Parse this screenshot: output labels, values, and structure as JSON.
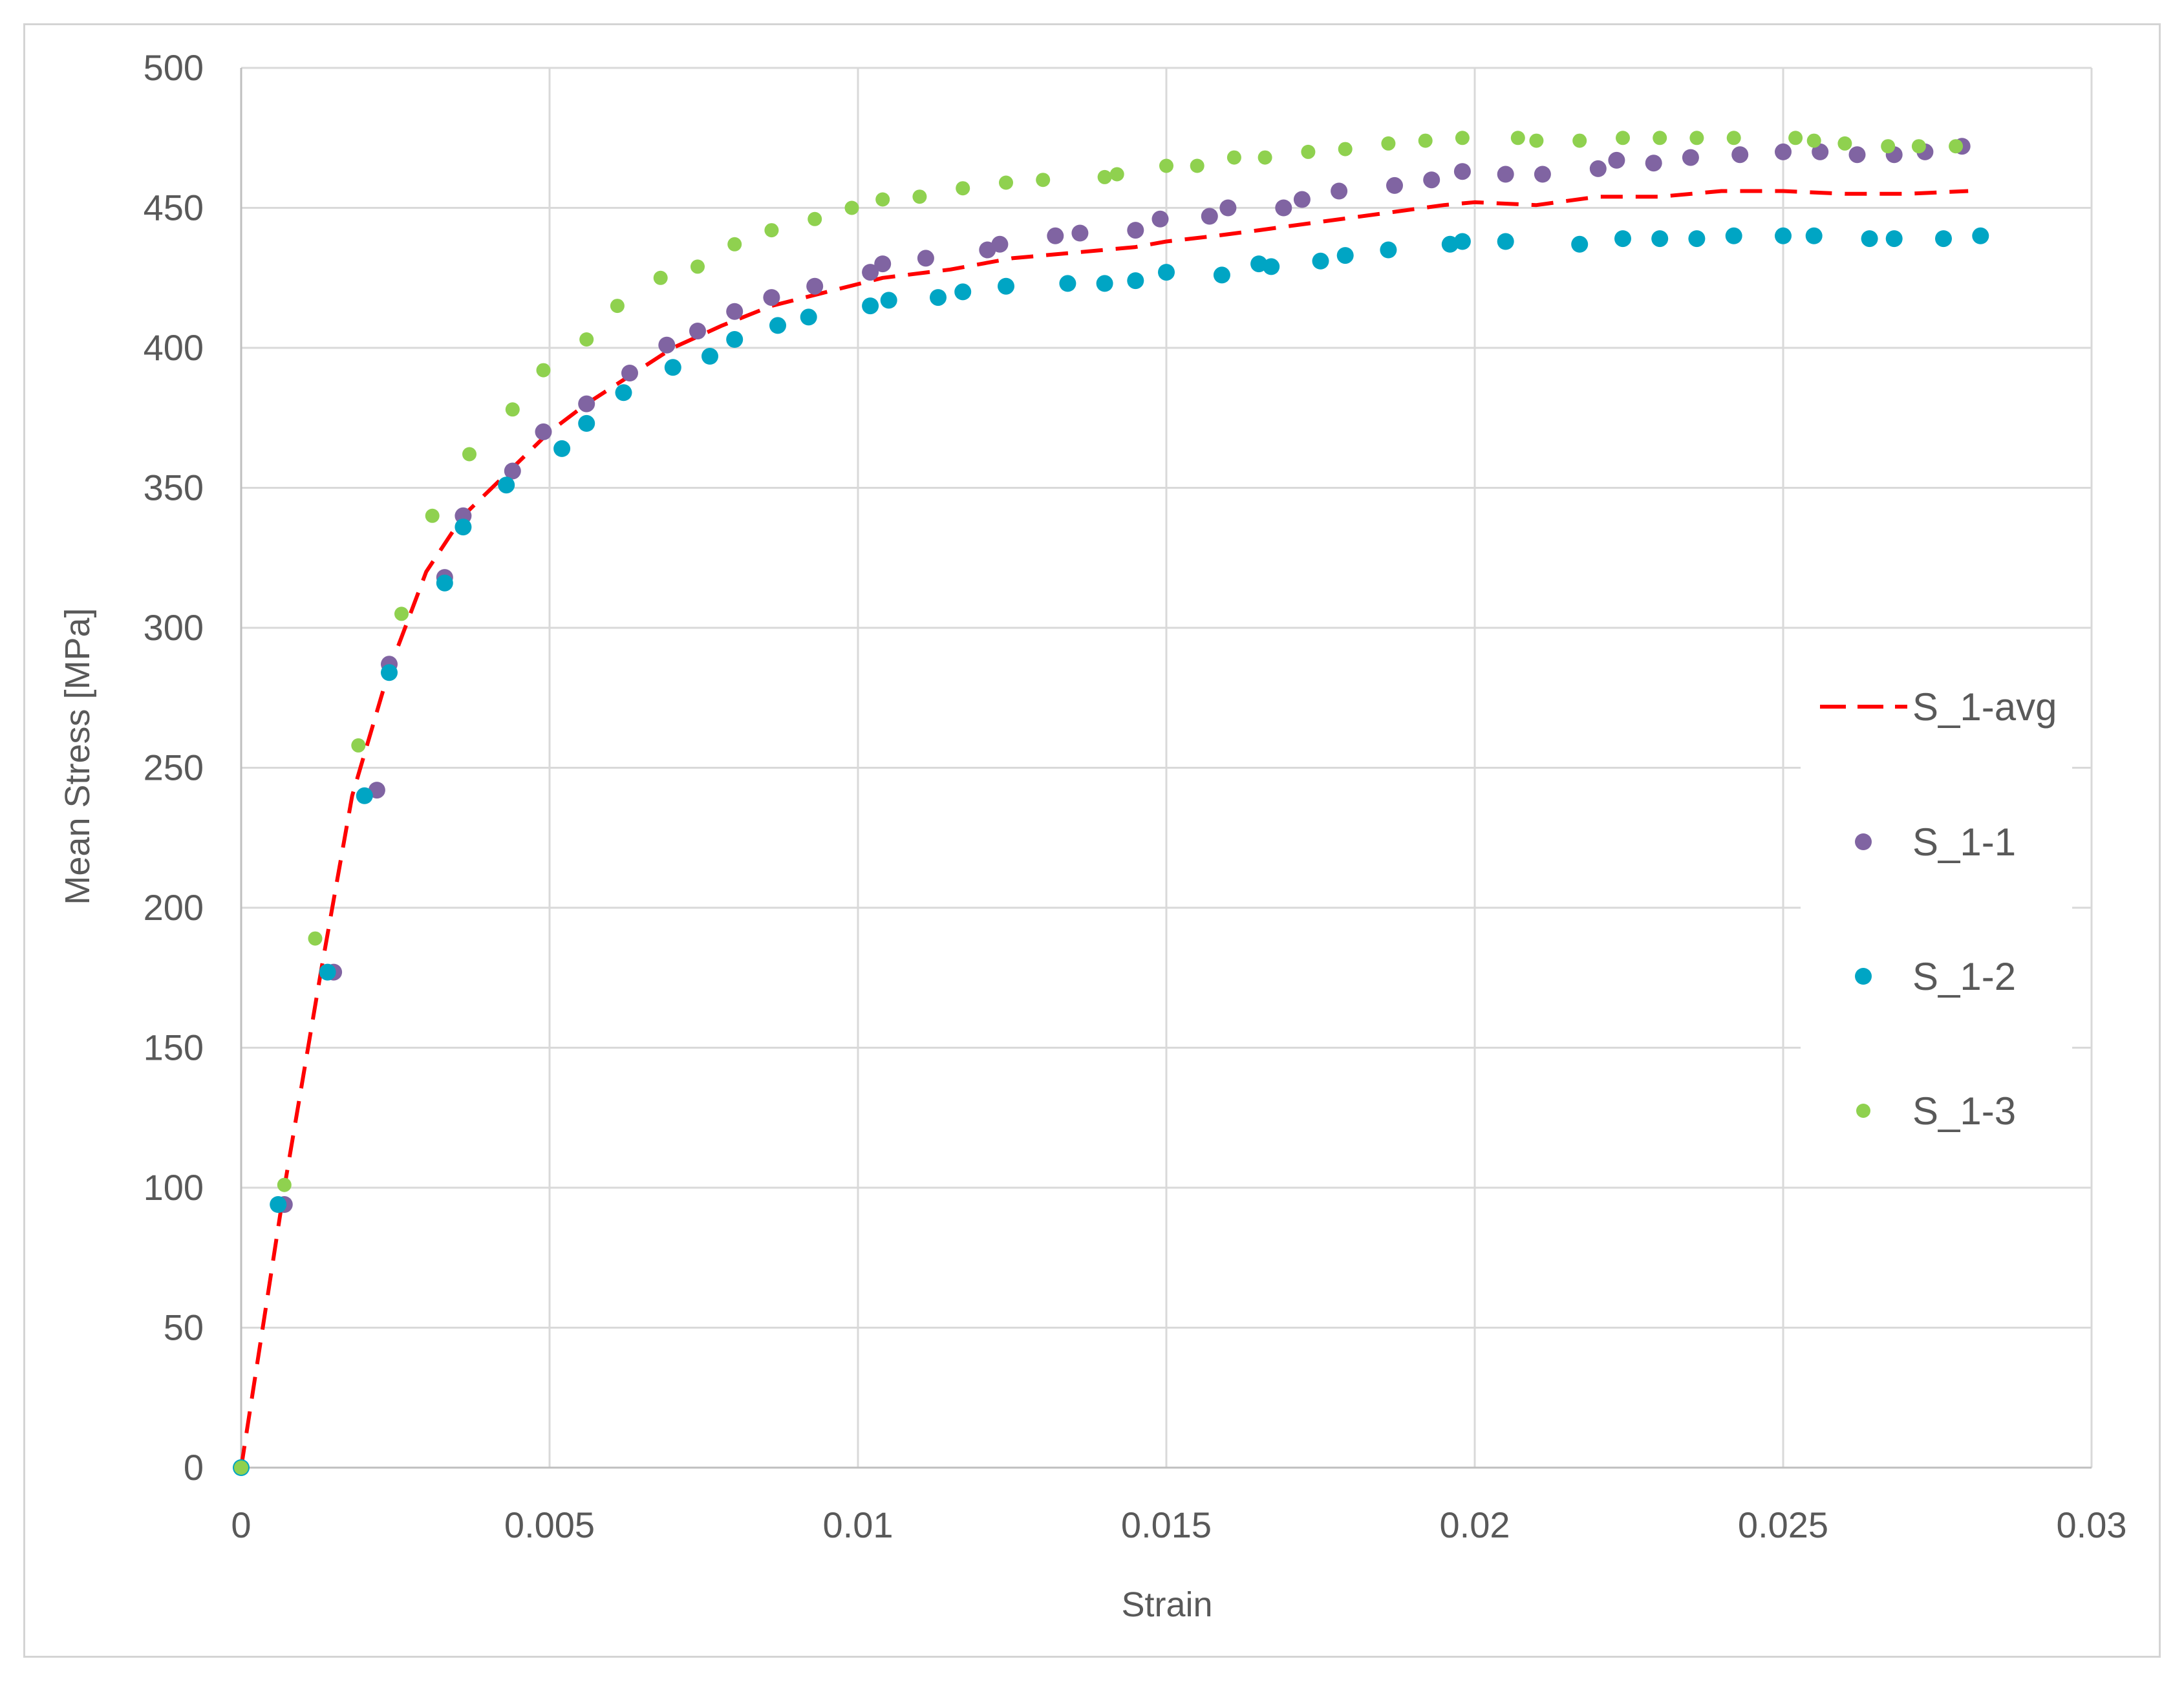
{
  "chart_data": {
    "type": "scatter",
    "title": "",
    "xlabel": "Strain",
    "ylabel": "Mean Stress [MPa]",
    "xlim": [
      0,
      0.03
    ],
    "ylim": [
      0,
      500
    ],
    "x_ticks": [
      "0",
      "0.005",
      "0.01",
      "0.015",
      "0.02",
      "0.025",
      "0.03"
    ],
    "y_ticks": [
      "0",
      "50",
      "100",
      "150",
      "200",
      "250",
      "300",
      "350",
      "400",
      "450",
      "500"
    ],
    "x_tick_values": [
      0,
      0.005,
      0.01,
      0.015,
      0.02,
      0.025,
      0.03
    ],
    "y_tick_values": [
      0,
      50,
      100,
      150,
      200,
      250,
      300,
      350,
      400,
      450,
      500
    ],
    "grid": true,
    "legend_position": "right",
    "series": [
      {
        "name": "S_1-avg",
        "style": "dashed-line",
        "color": "#ff0000",
        "points": [
          [
            0,
            0
          ],
          [
            0.0007,
            100
          ],
          [
            0.0013,
            178
          ],
          [
            0.0018,
            240
          ],
          [
            0.0024,
            285
          ],
          [
            0.003,
            320
          ],
          [
            0.0036,
            340
          ],
          [
            0.0043,
            355
          ],
          [
            0.005,
            370
          ],
          [
            0.0056,
            380
          ],
          [
            0.0063,
            390
          ],
          [
            0.007,
            400
          ],
          [
            0.0078,
            408
          ],
          [
            0.0086,
            415
          ],
          [
            0.0095,
            420
          ],
          [
            0.0104,
            425
          ],
          [
            0.0115,
            428
          ],
          [
            0.0125,
            432
          ],
          [
            0.0135,
            434
          ],
          [
            0.0145,
            436
          ],
          [
            0.015,
            438
          ],
          [
            0.0158,
            440
          ],
          [
            0.0165,
            442
          ],
          [
            0.0175,
            445
          ],
          [
            0.0185,
            448
          ],
          [
            0.0195,
            451
          ],
          [
            0.02,
            452
          ],
          [
            0.021,
            451
          ],
          [
            0.022,
            454
          ],
          [
            0.023,
            454
          ],
          [
            0.024,
            456
          ],
          [
            0.025,
            456
          ],
          [
            0.026,
            455
          ],
          [
            0.027,
            455
          ],
          [
            0.028,
            456
          ]
        ]
      },
      {
        "name": "S_1-1",
        "style": "markers",
        "color": "#8064a2",
        "points": [
          [
            0.0007,
            94
          ],
          [
            0.0015,
            177
          ],
          [
            0.0022,
            242
          ],
          [
            0.0024,
            287
          ],
          [
            0.0033,
            318
          ],
          [
            0.0036,
            340
          ],
          [
            0.0044,
            356
          ],
          [
            0.0049,
            370
          ],
          [
            0.0056,
            380
          ],
          [
            0.0063,
            391
          ],
          [
            0.0069,
            401
          ],
          [
            0.0074,
            406
          ],
          [
            0.008,
            413
          ],
          [
            0.0086,
            418
          ],
          [
            0.0093,
            422
          ],
          [
            0.0102,
            427
          ],
          [
            0.0104,
            430
          ],
          [
            0.0111,
            432
          ],
          [
            0.0121,
            435
          ],
          [
            0.0123,
            437
          ],
          [
            0.0132,
            440
          ],
          [
            0.0136,
            441
          ],
          [
            0.0145,
            442
          ],
          [
            0.0149,
            446
          ],
          [
            0.0157,
            447
          ],
          [
            0.016,
            450
          ],
          [
            0.0169,
            450
          ],
          [
            0.0172,
            453
          ],
          [
            0.0178,
            456
          ],
          [
            0.0187,
            458
          ],
          [
            0.0193,
            460
          ],
          [
            0.0198,
            463
          ],
          [
            0.0205,
            462
          ],
          [
            0.0211,
            462
          ],
          [
            0.022,
            464
          ],
          [
            0.0223,
            467
          ],
          [
            0.0229,
            466
          ],
          [
            0.0235,
            468
          ],
          [
            0.0243,
            469
          ],
          [
            0.025,
            470
          ],
          [
            0.0256,
            470
          ],
          [
            0.0262,
            469
          ],
          [
            0.0268,
            469
          ],
          [
            0.0273,
            470
          ],
          [
            0.0279,
            472
          ]
        ]
      },
      {
        "name": "S_1-2",
        "style": "markers",
        "color": "#00a5c4",
        "points": [
          [
            0,
            0
          ],
          [
            0.0006,
            94
          ],
          [
            0.0014,
            177
          ],
          [
            0.002,
            240
          ],
          [
            0.0024,
            284
          ],
          [
            0.0033,
            316
          ],
          [
            0.0036,
            336
          ],
          [
            0.0043,
            351
          ],
          [
            0.0052,
            364
          ],
          [
            0.0056,
            373
          ],
          [
            0.0062,
            384
          ],
          [
            0.007,
            393
          ],
          [
            0.0076,
            397
          ],
          [
            0.008,
            403
          ],
          [
            0.0087,
            408
          ],
          [
            0.0092,
            411
          ],
          [
            0.0102,
            415
          ],
          [
            0.0105,
            417
          ],
          [
            0.0113,
            418
          ],
          [
            0.0117,
            420
          ],
          [
            0.0124,
            422
          ],
          [
            0.0134,
            423
          ],
          [
            0.014,
            423
          ],
          [
            0.0145,
            424
          ],
          [
            0.015,
            427
          ],
          [
            0.0159,
            426
          ],
          [
            0.0165,
            430
          ],
          [
            0.0167,
            429
          ],
          [
            0.0175,
            431
          ],
          [
            0.0179,
            433
          ],
          [
            0.0186,
            435
          ],
          [
            0.0196,
            437
          ],
          [
            0.0198,
            438
          ],
          [
            0.0205,
            438
          ],
          [
            0.0217,
            437
          ],
          [
            0.0224,
            439
          ],
          [
            0.023,
            439
          ],
          [
            0.0236,
            439
          ],
          [
            0.0242,
            440
          ],
          [
            0.025,
            440
          ],
          [
            0.0255,
            440
          ],
          [
            0.0264,
            439
          ],
          [
            0.0268,
            439
          ],
          [
            0.0276,
            439
          ],
          [
            0.0282,
            440
          ]
        ]
      },
      {
        "name": "S_1-3",
        "style": "markers",
        "color": "#8fd14f",
        "points": [
          [
            0,
            0
          ],
          [
            0.0007,
            101
          ],
          [
            0.0012,
            189
          ],
          [
            0.0019,
            258
          ],
          [
            0.0026,
            305
          ],
          [
            0.0031,
            340
          ],
          [
            0.0037,
            362
          ],
          [
            0.0044,
            378
          ],
          [
            0.0049,
            392
          ],
          [
            0.0056,
            403
          ],
          [
            0.0061,
            415
          ],
          [
            0.0068,
            425
          ],
          [
            0.0074,
            429
          ],
          [
            0.008,
            437
          ],
          [
            0.0086,
            442
          ],
          [
            0.0093,
            446
          ],
          [
            0.0099,
            450
          ],
          [
            0.0104,
            453
          ],
          [
            0.011,
            454
          ],
          [
            0.0117,
            457
          ],
          [
            0.0124,
            459
          ],
          [
            0.013,
            460
          ],
          [
            0.014,
            461
          ],
          [
            0.0142,
            462
          ],
          [
            0.015,
            465
          ],
          [
            0.0155,
            465
          ],
          [
            0.0161,
            468
          ],
          [
            0.0166,
            468
          ],
          [
            0.0173,
            470
          ],
          [
            0.0179,
            471
          ],
          [
            0.0186,
            473
          ],
          [
            0.0192,
            474
          ],
          [
            0.0198,
            475
          ],
          [
            0.0207,
            475
          ],
          [
            0.021,
            474
          ],
          [
            0.0217,
            474
          ],
          [
            0.0224,
            475
          ],
          [
            0.023,
            475
          ],
          [
            0.0236,
            475
          ],
          [
            0.0242,
            475
          ],
          [
            0.0252,
            475
          ],
          [
            0.0255,
            474
          ],
          [
            0.026,
            473
          ],
          [
            0.0267,
            472
          ],
          [
            0.0272,
            472
          ],
          [
            0.0278,
            472
          ]
        ]
      }
    ]
  }
}
